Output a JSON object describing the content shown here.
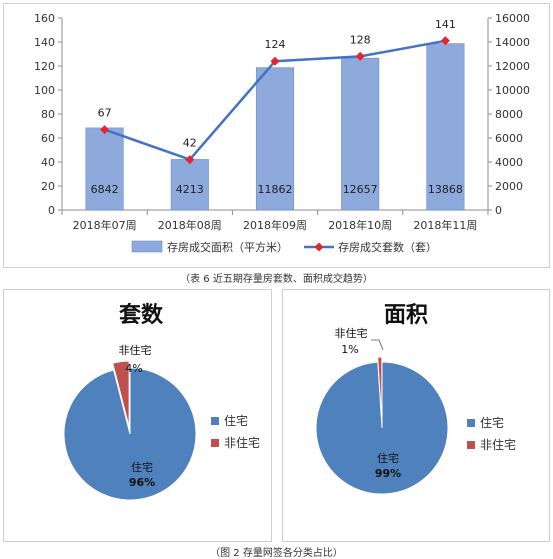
{
  "chart_data": [
    {
      "type": "bar+line",
      "categories": [
        "2018年07周",
        "2018年08周",
        "2018年09周",
        "2018年10周",
        "2018年11周"
      ],
      "series": [
        {
          "name": "存房成交面积（平方米）",
          "type": "bar",
          "axis": "right",
          "values": [
            6842,
            4213,
            11862,
            12657,
            13868
          ],
          "color": "#8EA9DB"
        },
        {
          "name": "存房成交套数（套）",
          "type": "line",
          "axis": "left",
          "values": [
            67,
            42,
            124,
            128,
            141
          ],
          "color": "#4472C4",
          "marker_color": "#E8232A"
        }
      ],
      "y_left": {
        "min": 0,
        "max": 160,
        "ticks": [
          "0",
          "20",
          "40",
          "60",
          "80",
          "100",
          "120",
          "140",
          "160"
        ]
      },
      "y_right": {
        "min": 0,
        "max": 16000,
        "ticks": [
          "0",
          "2000",
          "4000",
          "6000",
          "8000",
          "10000",
          "12000",
          "14000",
          "16000"
        ]
      },
      "legend_position": "bottom",
      "caption": "（表 6 近五期存量房套数、面积成交趋势）"
    },
    {
      "type": "pie",
      "title": "套数",
      "labels": [
        "住宅",
        "非住宅"
      ],
      "values": [
        96,
        4
      ],
      "percent_labels": [
        "96%",
        "4%"
      ],
      "colors": [
        "#4F81BD",
        "#C0504D"
      ],
      "legend_position": "right"
    },
    {
      "type": "pie",
      "title": "面积",
      "labels": [
        "住宅",
        "非住宅"
      ],
      "values": [
        99,
        1
      ],
      "percent_labels": [
        "99%",
        "1%"
      ],
      "colors": [
        "#4F81BD",
        "#C0504D"
      ],
      "legend_position": "right"
    }
  ],
  "bottom_caption": "（图 2 存量网签各分类占比）"
}
